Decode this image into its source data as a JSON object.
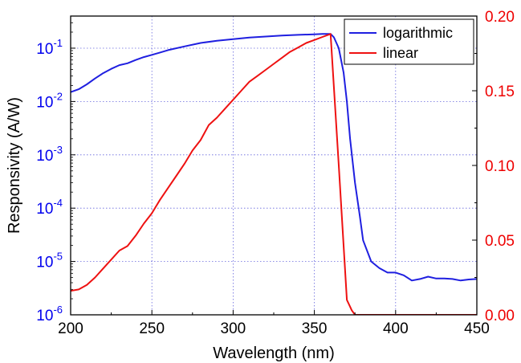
{
  "chart_data": {
    "type": "line",
    "title": "",
    "xlabel": "Wavelength (nm)",
    "ylabel_left": "Responsivity (A/W)",
    "ylabel_right": "",
    "xlim": [
      200,
      450
    ],
    "x_ticks": [
      200,
      250,
      300,
      350,
      400,
      450
    ],
    "y_left_scale": "log",
    "y_left_lim": [
      1e-06,
      0.4
    ],
    "y_left_ticks": [
      {
        "mant": "10",
        "exp": "-6",
        "value": 1e-06
      },
      {
        "mant": "10",
        "exp": "-5",
        "value": 1e-05
      },
      {
        "mant": "10",
        "exp": "-4",
        "value": 0.0001
      },
      {
        "mant": "10",
        "exp": "-3",
        "value": 0.001
      },
      {
        "mant": "10",
        "exp": "-2",
        "value": 0.01
      },
      {
        "mant": "10",
        "exp": "-1",
        "value": 0.1
      }
    ],
    "y_right_scale": "linear",
    "y_right_lim": [
      0.0,
      0.2
    ],
    "y_right_ticks": [
      "0.00",
      "0.05",
      "0.10",
      "0.15",
      "0.20"
    ],
    "grid": true,
    "legend_position": "top-right",
    "left_axis_color": "#0000ee",
    "right_axis_color": "#ee0000",
    "series": [
      {
        "name": "logarithmic",
        "color": "#1f1fe0",
        "axis": "left",
        "x": [
          200,
          205,
          210,
          215,
          220,
          225,
          230,
          235,
          240,
          245,
          250,
          255,
          260,
          270,
          280,
          290,
          300,
          310,
          320,
          330,
          340,
          350,
          355,
          360,
          362,
          365,
          368,
          370,
          372,
          375,
          378,
          380,
          385,
          390,
          395,
          400,
          405,
          410,
          415,
          420,
          425,
          430,
          435,
          440,
          445,
          450
        ],
        "y": [
          0.015,
          0.017,
          0.021,
          0.027,
          0.034,
          0.041,
          0.048,
          0.052,
          0.06,
          0.068,
          0.075,
          0.083,
          0.092,
          0.108,
          0.125,
          0.138,
          0.148,
          0.158,
          0.165,
          0.172,
          0.178,
          0.182,
          0.185,
          0.185,
          0.16,
          0.1,
          0.035,
          0.01,
          0.002,
          0.0003,
          7e-05,
          2.5e-05,
          1e-05,
          7.5e-06,
          6.2e-06,
          6.2e-06,
          5.5e-06,
          4.4e-06,
          4.7e-06,
          5.2e-06,
          4.8e-06,
          4.8e-06,
          4.7e-06,
          4.4e-06,
          4.6e-06,
          4.7e-06
        ]
      },
      {
        "name": "linear",
        "color": "#ee1111",
        "axis": "right",
        "x": [
          200,
          205,
          210,
          215,
          220,
          225,
          230,
          235,
          240,
          245,
          250,
          255,
          260,
          265,
          270,
          275,
          280,
          285,
          290,
          295,
          300,
          305,
          310,
          315,
          320,
          325,
          330,
          335,
          340,
          345,
          350,
          355,
          360,
          365,
          370,
          373,
          375,
          380,
          400,
          420,
          450
        ],
        "y": [
          0.016,
          0.017,
          0.02,
          0.025,
          0.031,
          0.037,
          0.043,
          0.046,
          0.053,
          0.061,
          0.068,
          0.077,
          0.085,
          0.093,
          0.101,
          0.11,
          0.117,
          0.127,
          0.132,
          0.138,
          0.144,
          0.15,
          0.156,
          0.16,
          0.164,
          0.168,
          0.172,
          0.176,
          0.179,
          0.182,
          0.184,
          0.186,
          0.188,
          0.1,
          0.01,
          0.003,
          0.0,
          0.0,
          0.0,
          0.0,
          0.0
        ]
      }
    ]
  }
}
